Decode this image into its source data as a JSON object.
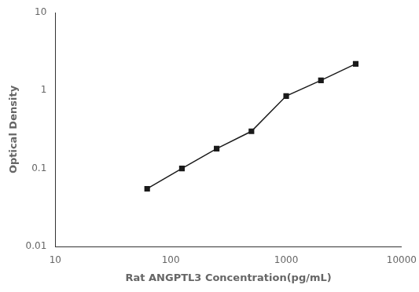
{
  "chart_data": {
    "type": "line",
    "x": [
      62.5,
      125,
      250,
      500,
      1000,
      2000,
      4000
    ],
    "values": [
      0.055,
      0.1,
      0.18,
      0.3,
      0.85,
      1.35,
      2.2
    ],
    "color": "#1a1a1a",
    "marker": "square",
    "line_style": "solid",
    "xlabel": "Rat ANGPTL3 Concentration(pg/mL)",
    "ylabel": "Optical Density",
    "log": true,
    "xlim": [
      10,
      10000
    ],
    "ylim": [
      0.01,
      10
    ],
    "xticks": [
      10,
      100,
      1000,
      10000
    ],
    "yticks": [
      0.01,
      0.1,
      1,
      10
    ],
    "grid": false
  }
}
